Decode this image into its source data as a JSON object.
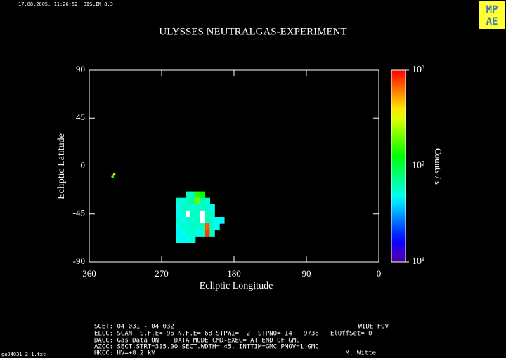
{
  "header": {
    "timestamp": "17.08.2005, 11:26:52, DISLIN 8.3",
    "logo": [
      "MP",
      "AE"
    ]
  },
  "chart_data": {
    "type": "heatmap",
    "title": "ULYSSES NEUTRALGAS-EXPERIMENT",
    "x_label": "Ecliptic Longitude",
    "y_label": "Ecliptic Latitude",
    "xlim": [
      360,
      0
    ],
    "xticks": [
      360,
      270,
      180,
      90,
      0
    ],
    "ylim": [
      -90,
      90
    ],
    "yticks": [
      90,
      45,
      0,
      -45,
      -90
    ],
    "colorbar": {
      "label": "Counts / s",
      "log": true,
      "lim": [
        10,
        1000
      ],
      "ticks": [
        {
          "value": 10,
          "label": "10¹"
        },
        {
          "value": 100,
          "label": "10²"
        },
        {
          "value": 1000,
          "label": "10³"
        }
      ]
    },
    "heatmap": {
      "x": [
        249,
        243,
        237,
        231,
        225,
        219,
        213,
        207,
        201,
        195
      ],
      "y": [
        -27,
        -33,
        -39,
        -45,
        -51,
        -57,
        -63,
        -69
      ],
      "values": [
        [
          null,
          null,
          60,
          60,
          150,
          130,
          null,
          null,
          null,
          null
        ],
        [
          55,
          55,
          60,
          70,
          200,
          60,
          55,
          null,
          null,
          null
        ],
        [
          50,
          60,
          55,
          55,
          60,
          55,
          60,
          50,
          null,
          null
        ],
        [
          50,
          55,
          1500,
          60,
          55,
          1500,
          60,
          55,
          null,
          null
        ],
        [
          55,
          50,
          60,
          55,
          60,
          1500,
          60,
          55,
          50,
          45
        ],
        [
          50,
          55,
          55,
          60,
          55,
          60,
          700,
          55,
          50,
          null
        ],
        [
          45,
          50,
          55,
          55,
          50,
          55,
          800,
          60,
          null,
          null
        ],
        [
          50,
          45,
          50,
          55,
          null,
          null,
          null,
          null,
          null,
          null
        ]
      ]
    },
    "points": {
      "x": [
        331,
        329
      ],
      "y": [
        -10,
        -8
      ],
      "values": [
        150,
        400
      ]
    }
  },
  "footer": {
    "lines": [
      "SCET: 04 031 - 04 032",
      "ELCC: SCAN  S.F.E= 96 N.F.E= 68 STPWI=  2  STPNO= 14   9738   ElOffSet= 0",
      "DACC: Gas Data ON    DATA MODE CMD-EXEC= AT END OF GMC",
      "AZCC: SECT.STRT=315.00 SECT.WDTH= 45. INTTIM=GMC PMOV=1 GMC",
      "HKCC: HV=+8.2 kV"
    ],
    "fov": "WIDE FOV",
    "author": "M. Witte",
    "filename": "ga04031_2_1.txt"
  }
}
